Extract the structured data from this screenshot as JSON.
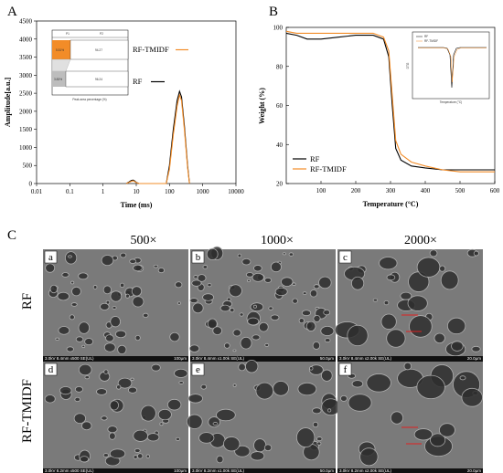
{
  "colors": {
    "rf": "#000000",
    "rf_tmidf": "#f28c28",
    "inset_bar_rf": "#bdbdbd",
    "inset_bar_tmidf": "#f28c28"
  },
  "panel_labels": {
    "a": "A",
    "b": "B",
    "c": "C"
  },
  "chart_data": [
    {
      "type": "line",
      "xlabel": "Time (ms)",
      "ylabel": "Amplitude[a.u.]",
      "x_scale": "log",
      "xlim": [
        0.01,
        10000
      ],
      "ylim": [
        0,
        4500
      ],
      "xticks": [
        "0.01",
        "0.1",
        "1",
        "10",
        "100",
        "1000",
        "10000"
      ],
      "yticks": [
        "0",
        "500",
        "1000",
        "1500",
        "2000",
        "2500",
        "3000",
        "3500",
        "4000",
        "4500"
      ],
      "legend": "top-right",
      "series": [
        {
          "name": "RF",
          "x": [
            5,
            6,
            7,
            8,
            9,
            10,
            12,
            80,
            100,
            130,
            170,
            200,
            230,
            280,
            350,
            400
          ],
          "y": [
            0,
            40,
            80,
            95,
            70,
            30,
            0,
            0,
            500,
            1500,
            2300,
            2550,
            2400,
            1600,
            500,
            0
          ]
        },
        {
          "name": "RF-TMIDF",
          "x": [
            5,
            6,
            7,
            8,
            9,
            10,
            12,
            80,
            100,
            130,
            170,
            200,
            230,
            280,
            350,
            400
          ],
          "y": [
            0,
            30,
            60,
            75,
            55,
            25,
            0,
            0,
            400,
            1350,
            2150,
            2450,
            2300,
            1500,
            450,
            0
          ]
        }
      ],
      "inset": {
        "type": "bar",
        "xlabel": "Peak area percentage (%)",
        "col_headers": [
          "P1",
          "P2"
        ],
        "bars": [
          {
            "series": "RF-TMIDF",
            "p1_label": "5.51%",
            "p2_label": "94.27"
          },
          {
            "series": "RF",
            "p1_label": "3.83%",
            "p2_label": "96.24"
          }
        ]
      }
    },
    {
      "type": "line",
      "xlabel": "Temperature (°C)",
      "ylabel": "Weight (%)",
      "xlim": [
        0,
        600
      ],
      "ylim": [
        20,
        100
      ],
      "xticks": [
        "100",
        "200",
        "300",
        "400",
        "500",
        "600"
      ],
      "yticks": [
        "20",
        "40",
        "60",
        "80",
        "100"
      ],
      "legend": "bottom-left",
      "series": [
        {
          "name": "RF",
          "x": [
            0,
            30,
            60,
            100,
            150,
            200,
            250,
            280,
            295,
            305,
            315,
            330,
            360,
            400,
            450,
            500,
            550,
            600
          ],
          "y": [
            97,
            96,
            94,
            94,
            95,
            96,
            96,
            94,
            85,
            60,
            38,
            32,
            29,
            28,
            27,
            27,
            27,
            27
          ]
        },
        {
          "name": "RF-TMIDF",
          "x": [
            0,
            30,
            60,
            100,
            150,
            200,
            250,
            280,
            295,
            305,
            315,
            330,
            360,
            400,
            450,
            500,
            550,
            600
          ],
          "y": [
            98,
            97,
            97,
            97,
            97,
            97,
            97,
            95,
            88,
            65,
            42,
            35,
            31,
            29,
            27,
            26,
            26,
            26
          ]
        }
      ],
      "inset": {
        "type": "line",
        "ylabel": "DTG",
        "xlabel": "Temperature (°C)",
        "legend": [
          "RF",
          "RF-TMIDF"
        ]
      }
    }
  ],
  "sem": {
    "magnifications": [
      "500×",
      "1000×",
      "2000×"
    ],
    "rows": [
      "RF",
      "RF-TMIDF"
    ],
    "tiles": [
      {
        "tag": "a",
        "caption": "3.0kV 8.4mm x500 SE(UL)",
        "scale": "100μm"
      },
      {
        "tag": "b",
        "caption": "3.0kV 8.4mm x1.00k SE(UL)",
        "scale": "50.0μm"
      },
      {
        "tag": "c",
        "caption": "3.0kV 8.4mm x2.00k SE(UL)",
        "scale": "20.0μm"
      },
      {
        "tag": "d",
        "caption": "3.0kV 8.2mm x500 SE(UL)",
        "scale": "100μm"
      },
      {
        "tag": "e",
        "caption": "3.0kV 8.2mm x1.00k SE(UL)",
        "scale": "50.0μm"
      },
      {
        "tag": "f",
        "caption": "3.0kV 8.2mm x2.00k SE(UL)",
        "scale": "20.0μm"
      }
    ]
  }
}
